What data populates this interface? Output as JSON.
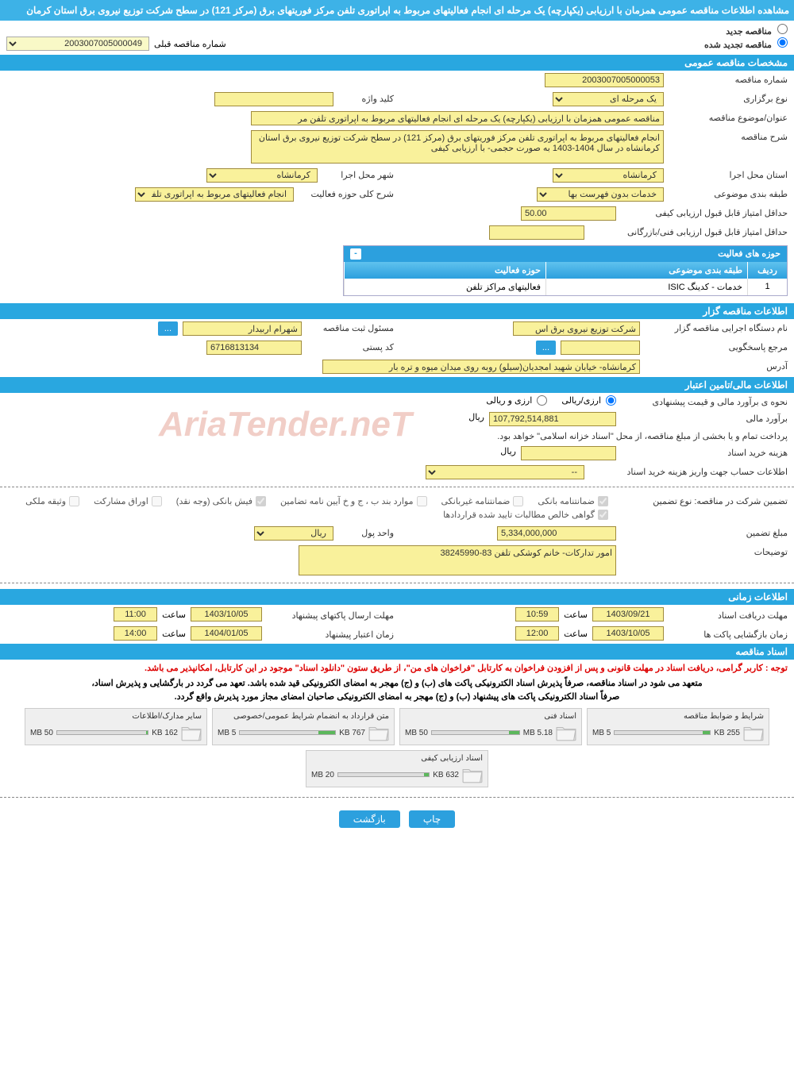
{
  "page_title": "مشاهده اطلاعات مناقصه عمومی همزمان با ارزیابی (یکپارچه) یک مرحله ای انجام فعالیتهای مربوط به اپراتوری تلفن مرکز فوریتهای برق (مرکز 121) در سطح شرکت توزیع نیروی برق استان کرمان",
  "radios": {
    "new_label": "مناقصه جدید",
    "renewed_label": "مناقصه تجدید شده"
  },
  "prev_no": {
    "label": "شماره مناقصه قبلی",
    "value": "2003007005000049"
  },
  "sect": {
    "general": "مشخصات مناقصه عمومی",
    "institution": "اطلاعات مناقصه گزار",
    "financial": "اطلاعات مالی/تامین اعتبار",
    "time": "اطلاعات زمانی",
    "docs": "اسناد مناقصه"
  },
  "general": {
    "tender_no_label": "شماره مناقصه",
    "tender_no": "2003007005000053",
    "type_label": "نوع برگزاری",
    "type": "یک مرحله ای",
    "keyword_label": "کلید واژه",
    "keyword": "",
    "subject_label": "عنوان/موضوع مناقصه",
    "subject": "مناقصه عمومی همزمان با ارزیابی (یکپارچه) یک مرحله ای انجام فعالیتهای مربوط به اپراتوری تلفن مر",
    "desc_label": "شرح مناقصه",
    "desc": "انجام فعالیتهای مربوط به اپراتوری تلفن مرکز فوریتهای برق (مرکز 121) در سطح شرکت توزیع نیروی برق استان کرمانشاه در سال 1404-1403 به صورت حجمی- با ارزیابی کیفی",
    "province_label": "استان محل اجرا",
    "province": "کرمانشاه",
    "city_label": "شهر محل اجرا",
    "city": "کرمانشاه",
    "cat_label": "طبقه بندی موضوعی",
    "cat": "خدمات بدون فهرست بها",
    "scope_label": "شرح کلی حوزه فعالیت",
    "scope": "انجام فعالیتهای مربوط به اپراتوری تلفن مرکز",
    "min_qual_label": "حداقل امتیاز قابل قبول ارزیابی کیفی",
    "min_qual": "50.00",
    "min_tech_label": "حداقل امتیاز قابل قبول ارزیابی فنی/بازرگانی",
    "min_tech": ""
  },
  "activity": {
    "title": "حوزه های فعالیت",
    "cols": {
      "row": "ردیف",
      "cat": "طبقه بندی موضوعی",
      "scope": "حوزه فعالیت"
    },
    "rows": [
      {
        "idx": "1",
        "cat": "خدمات - کدینگ ISIC",
        "scope": "فعالیتهای مراکز تلفن"
      }
    ]
  },
  "institution": {
    "org_label": "نام دستگاه اجرایی مناقصه گزار",
    "org": "شرکت توزیع نیروی برق اس",
    "reg_label": "مسئول ثبت مناقصه",
    "reg": "شهرام اربیدار",
    "btn": "...",
    "resp_label": "مرجع پاسخگویی",
    "resp": "",
    "post_label": "کد پستی",
    "post": "6716813134",
    "addr_label": "آدرس",
    "addr": "کرمانشاه- خیابان شهید امجدیان(سیلو) روبه روی میدان میوه و تره بار"
  },
  "financial": {
    "method_label": "نحوه ی برآورد مالی و قیمت پیشنهادی",
    "opt_rial": "ارزی/ریالی",
    "opt_fx": "ارزی و ریالی",
    "est_label": "برآورد مالی",
    "est": "107,792,514,881",
    "unit": "ریال",
    "note1": "پرداخت تمام و یا بخشی از مبلغ مناقصه، از محل \"اسناد خزانه اسلامی\" خواهد بود.",
    "doc_cost_label": "هزینه خرید اسناد",
    "doc_cost": "",
    "doc_unit": "ریال",
    "acct_label": "اطلاعات حساب جهت واریز هزینه خرید اسناد",
    "acct": "--",
    "guar_type_label": "تضمین شرکت در مناقصه:   نوع تضمین",
    "chk": {
      "bank_guar": "ضمانتنامه بانکی",
      "nonbank_guar": "ضمانتنامه غیربانکی",
      "bond_items": "موارد بند ب ، ج و خ آیین نامه تضامین",
      "bank_fish": "فیش بانکی (وجه نقد)",
      "shares": "اوراق مشارکت",
      "property": "وثیقه ملکی",
      "claims": "گواهی خالص مطالبات تایید شده قراردادها"
    },
    "guar_amt_label": "مبلغ تضمین",
    "guar_amt": "5,334,000,000",
    "money_unit_label": "واحد پول",
    "money_unit": "ریال",
    "remarks_label": "توضیحات",
    "remarks": "امور تدارکات- خانم کوشکی تلفن 83-38245990"
  },
  "time": {
    "recv_label": "مهلت دریافت اسناد",
    "recv_date": "1403/09/21",
    "recv_time_lbl": "ساعت",
    "recv_time": "10:59",
    "send_label": "مهلت ارسال پاکتهای پیشنهاد",
    "send_date": "1403/10/05",
    "send_time_lbl": "ساعت",
    "send_time": "11:00",
    "open_label": "زمان بازگشایی پاکت ها",
    "open_date": "1403/10/05",
    "open_time_lbl": "ساعت",
    "open_time": "12:00",
    "valid_label": "زمان اعتبار پیشنهاد",
    "valid_date": "1404/01/05",
    "valid_time_lbl": "ساعت",
    "valid_time": "14:00"
  },
  "docs": {
    "notice1": "توجه : کاربر گرامی، دریافت اسناد در مهلت قانونی و پس از افزودن فراخوان به کارتابل \"فراخوان های من\"، از طریق ستون \"دانلود اسناد\" موجود در این کارتابل، امکانپذیر می باشد.",
    "notice2": "متعهد می شود در اسناد مناقصه، صرفاً پذیرش اسناد الکترونیکی پاکت های (ب) و (ج) مهجر به امضای الکترونیکی قید شده باشد. تعهد می گردد در بارگشایی و پذیرش اسناد،",
    "notice3": "صرفاً اسناد الکترونیکی پاکت های پیشنهاد (ب) و (ج) مهجر به امضای الکترونیکی صاحبان امضای مجاز مورد پذیرش واقع گردد.",
    "files": [
      {
        "name": "شرایط و ضوابط مناقصه",
        "size": "255 KB",
        "max": "5 MB",
        "pct": 8
      },
      {
        "name": "اسناد فنی",
        "size": "5.18 MB",
        "max": "50 MB",
        "pct": 12
      },
      {
        "name": "متن قرارداد به انضمام شرایط عمومی/خصوصی",
        "size": "767 KB",
        "max": "5 MB",
        "pct": 18
      },
      {
        "name": "سایر مدارک/اطلاعات",
        "size": "162 KB",
        "max": "50 MB",
        "pct": 2
      },
      {
        "name": "اسناد ارزیابی کیفی",
        "size": "632 KB",
        "max": "20 MB",
        "pct": 5
      }
    ]
  },
  "buttons": {
    "print": "چاپ",
    "back": "بازگشت"
  },
  "watermark": "AriaTender.neT"
}
